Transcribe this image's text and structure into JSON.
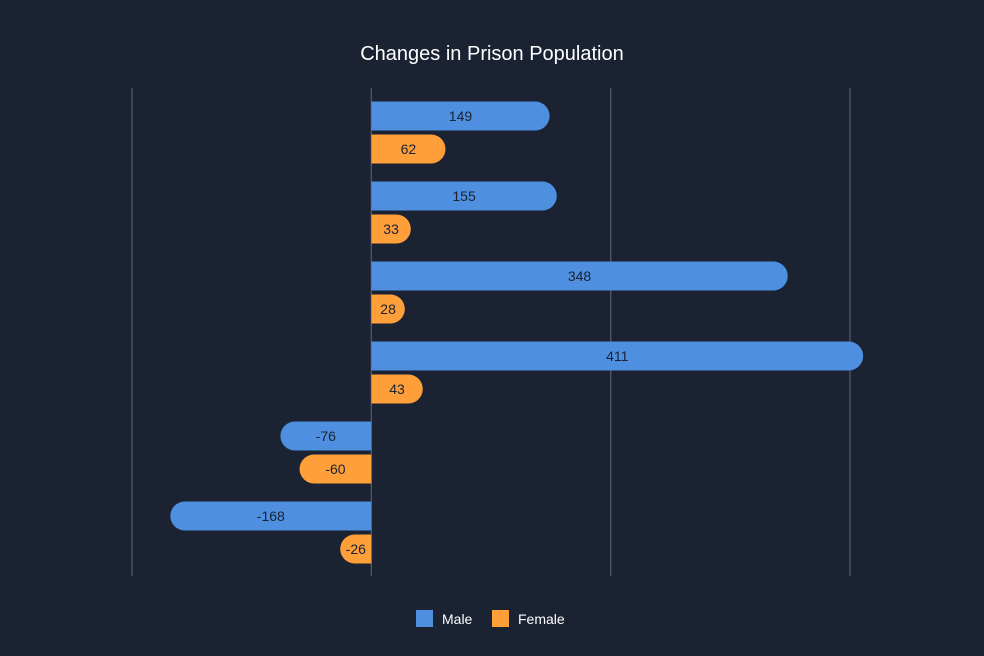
{
  "chart_data": {
    "type": "bar",
    "orientation": "horizontal",
    "title": "Changes in Prison Population",
    "xlabel": "",
    "ylabel": "",
    "categories": [
      "",
      "",
      "",
      "",
      "",
      ""
    ],
    "xlim": [
      -200,
      400
    ],
    "grid": true,
    "legend_position": "bottom-center",
    "series": [
      {
        "name": "Male",
        "color": "#4e8fdf",
        "values": [
          149,
          155,
          348,
          411,
          -76,
          -168
        ]
      },
      {
        "name": "Female",
        "color": "#ff9f3a",
        "values": [
          62,
          33,
          28,
          43,
          -60,
          -26
        ]
      }
    ]
  }
}
